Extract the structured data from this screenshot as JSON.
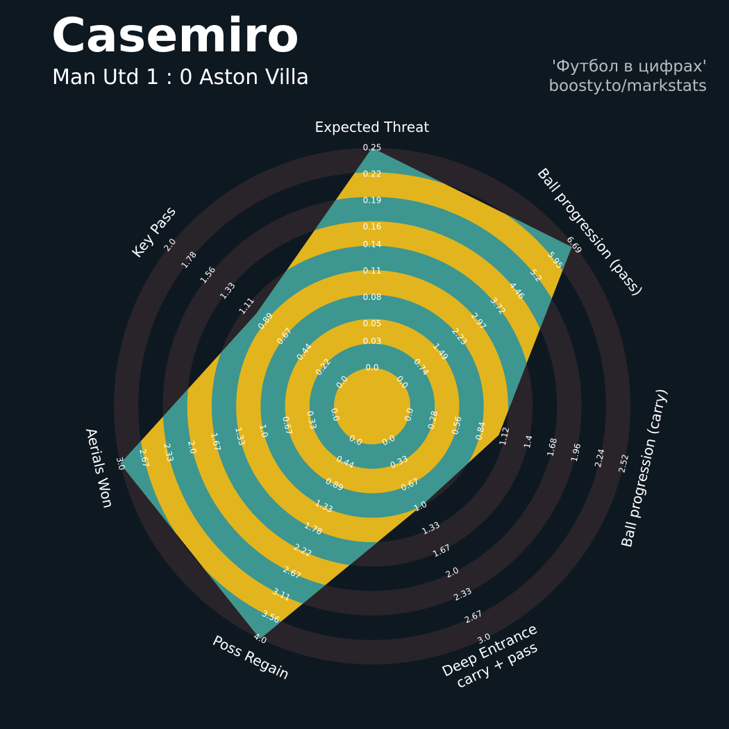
{
  "title": "Casemiro",
  "subtitle": "Man Utd 1 : 0 Aston Villa",
  "credits": [
    "'Футбол в цифрах'",
    "boosty.to/markstats"
  ],
  "chart_data": {
    "type": "radar",
    "categories": [
      "Expected Threat",
      "Ball progression (pass)",
      "Ball progression (carry)",
      "Deep Entrance\ncarry + pass",
      "Poss Regain",
      "Aerials Won",
      "Key Pass"
    ],
    "values": [
      0.25,
      6.6,
      1.05,
      1.0,
      4.0,
      3.0,
      1.0
    ],
    "color": "#3d9690",
    "ring_color": "#28242a",
    "highlight_color": "#e2b51e",
    "axes": [
      {
        "ylim": [
          0,
          0.25
        ],
        "yticks": [
          {
            "value": 0,
            "label": "0.0"
          },
          0.03,
          0.05,
          0.08,
          0.11,
          0.14,
          0.16,
          0.19,
          0.22,
          0.25
        ]
      },
      {
        "ylim": [
          0,
          6.69
        ],
        "yticks": [
          {
            "value": 0,
            "label": "0.0"
          },
          0.74,
          1.49,
          2.23,
          2.97,
          3.72,
          4.46,
          5.2,
          5.95,
          6.69
        ]
      },
      {
        "ylim": [
          0,
          2.52
        ],
        "yticks": [
          {
            "value": 0,
            "label": "0.0"
          },
          0.28,
          0.56,
          0.84,
          1.12,
          1.4,
          1.68,
          1.96,
          2.24,
          2.52
        ]
      },
      {
        "ylim": [
          0,
          3
        ],
        "yticks": [
          {
            "value": 0,
            "label": "0.0"
          },
          0.33,
          0.67,
          {
            "value": 1,
            "label": "1.0"
          },
          1.33,
          1.67,
          {
            "value": 2,
            "label": "2.0"
          },
          2.33,
          2.67,
          {
            "value": 3,
            "label": "3.0"
          }
        ]
      },
      {
        "ylim": [
          0,
          4
        ],
        "yticks": [
          {
            "value": 0,
            "label": "0.0"
          },
          0.44,
          0.89,
          1.33,
          1.78,
          2.22,
          2.67,
          3.11,
          3.56,
          {
            "value": 4,
            "label": "4.0"
          }
        ]
      },
      {
        "ylim": [
          0,
          3
        ],
        "yticks": [
          {
            "value": 0,
            "label": "0.0"
          },
          0.33,
          0.67,
          {
            "value": 1,
            "label": "1.0"
          },
          1.33,
          1.67,
          {
            "value": 2,
            "label": "2.0"
          },
          2.33,
          2.67,
          {
            "value": 3,
            "label": "3.0"
          }
        ]
      },
      {
        "ylim": [
          0,
          2
        ],
        "yticks": [
          {
            "value": 0,
            "label": "0.0"
          },
          0.22,
          0.44,
          0.67,
          0.89,
          1.11,
          1.33,
          1.56,
          1.78,
          {
            "value": 2,
            "label": "2.0"
          }
        ]
      }
    ]
  }
}
